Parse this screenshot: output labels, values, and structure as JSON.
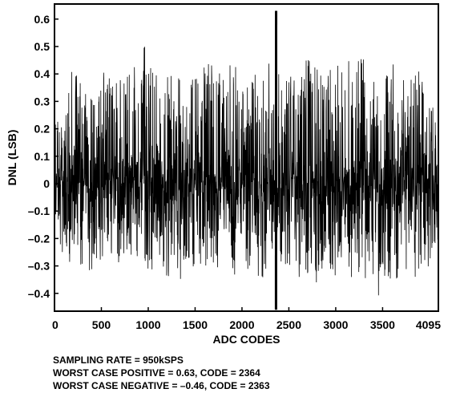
{
  "chart_data": {
    "type": "line",
    "xlabel": "ADC CODES",
    "ylabel": "DNL (LSB)",
    "xlim": [
      0,
      4095
    ],
    "ylim": [
      -0.46,
      0.63
    ],
    "x_ticks": [
      0,
      500,
      1000,
      1500,
      2000,
      2500,
      3000,
      3500,
      4095
    ],
    "y_ticks": [
      0.6,
      0.5,
      0.4,
      0.3,
      0.2,
      0.1,
      0,
      -0.1,
      -0.2,
      -0.3,
      -0.4
    ],
    "x_tick_labels": [
      "0",
      "500",
      "1000",
      "1500",
      "2000",
      "2500",
      "3000",
      "3500",
      "4095"
    ],
    "y_tick_labels": [
      "0.6",
      "0.5",
      "0.4",
      "0.3",
      "0.2",
      "0.1",
      "0",
      "–0.1",
      "–0.2",
      "–0.3",
      "–0.4"
    ],
    "grid": false,
    "series": [
      {
        "color": "#000000",
        "envelope_upper": [
          0.28,
          0.2,
          0.46,
          0.42,
          0.3,
          0.4,
          0.42,
          0.4,
          0.38,
          0.43,
          0.5,
          0.53,
          0.4,
          0.43,
          0.42,
          0.35,
          0.43,
          0.42,
          0.45,
          0.4,
          0.46,
          0.42,
          0.4,
          0.43,
          0.4,
          0.48,
          0.38,
          0.4,
          0.35,
          0.47,
          0.45,
          0.38,
          0.45,
          0.42,
          0.48,
          0.48,
          0.42,
          0.38,
          0.42,
          0.46,
          0.43,
          0.38,
          0.42,
          0.3,
          0.25
        ],
        "envelope_lower": [
          -0.25,
          -0.28,
          -0.3,
          -0.3,
          -0.32,
          -0.3,
          -0.25,
          -0.3,
          -0.3,
          -0.33,
          -0.3,
          -0.34,
          -0.3,
          -0.35,
          -0.33,
          -0.38,
          -0.3,
          -0.32,
          -0.33,
          -0.3,
          -0.32,
          -0.35,
          -0.3,
          -0.38,
          -0.35,
          -0.3,
          -0.33,
          -0.3,
          -0.35,
          -0.33,
          -0.38,
          -0.3,
          -0.38,
          -0.3,
          -0.35,
          -0.33,
          -0.38,
          -0.42,
          -0.35,
          -0.37,
          -0.3,
          -0.38,
          -0.32,
          -0.3,
          -0.25
        ],
        "spike": {
          "code_positive": 2364,
          "value_positive": 0.63,
          "code_negative": 2363,
          "value_negative": -0.46
        }
      }
    ]
  },
  "notes": {
    "line1": "SAMPLING RATE = 950kSPS",
    "line2": "WORST CASE POSITIVE = 0.63, CODE = 2364",
    "line3": "WORST CASE NEGATIVE = –0.46, CODE = 2363"
  }
}
